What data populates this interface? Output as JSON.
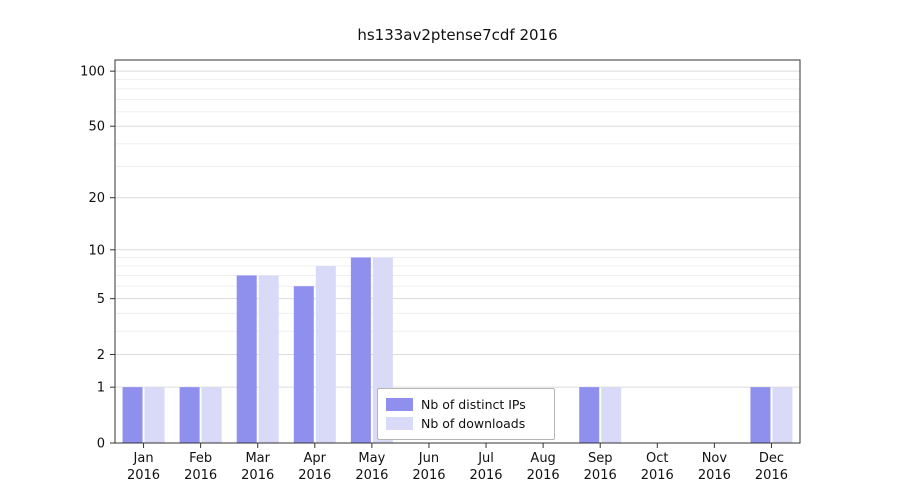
{
  "chart_data": {
    "type": "bar",
    "title": "hs133av2ptense7cdf 2016",
    "categories": [
      "Jan",
      "Feb",
      "Mar",
      "Apr",
      "May",
      "Jun",
      "Jul",
      "Aug",
      "Sep",
      "Oct",
      "Nov",
      "Dec"
    ],
    "year_label": "2016",
    "series": [
      {
        "name": "Nb of distinct IPs",
        "color": "#8f8fee",
        "values": [
          1,
          1,
          7,
          6,
          9,
          0,
          0,
          0,
          1,
          0,
          0,
          1
        ]
      },
      {
        "name": "Nb of downloads",
        "color": "#d9d9f8",
        "values": [
          1,
          1,
          7,
          8,
          9,
          0,
          0,
          0,
          1,
          0,
          0,
          1
        ]
      }
    ],
    "yticks": [
      0,
      1,
      2,
      5,
      10,
      20,
      50,
      100
    ],
    "minor_gridlines": [
      3,
      4,
      6,
      7,
      8,
      9,
      30,
      40,
      60,
      70,
      80,
      90
    ],
    "ylim": [
      0,
      115
    ],
    "yscale": "log1p",
    "xlabel": "",
    "ylabel": "",
    "grid": true,
    "legend_position": "lower center"
  }
}
